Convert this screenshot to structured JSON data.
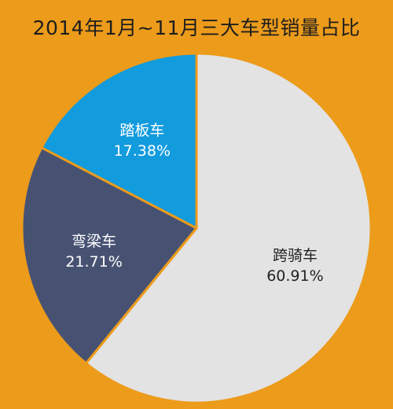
{
  "chart_data": {
    "type": "pie",
    "title": "2014年1月~11月三大车型销量占比",
    "colors": {
      "background": "#EC9B1B",
      "跨骑车": "#E3E3E3",
      "弯梁车": "#475273",
      "踏板车": "#129BDD"
    },
    "slices": [
      {
        "label": "跨骑车",
        "value": 60.91,
        "value_text": "60.91%",
        "color": "#E3E3E3",
        "text_color": "#222222"
      },
      {
        "label": "弯梁车",
        "value": 21.71,
        "value_text": "21.71%",
        "color": "#475273",
        "text_color": "#ffffff"
      },
      {
        "label": "踏板车",
        "value": 17.38,
        "value_text": "17.38%",
        "color": "#129BDD",
        "text_color": "#ffffff"
      }
    ],
    "start_angle_deg": 0,
    "direction": "clockwise",
    "legend": "none"
  }
}
